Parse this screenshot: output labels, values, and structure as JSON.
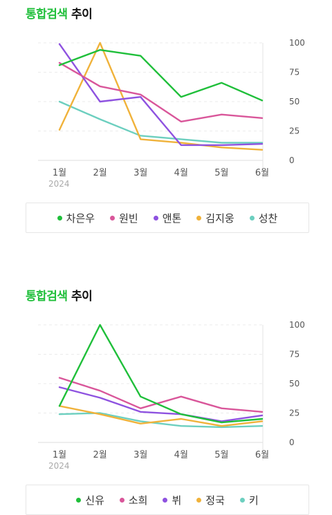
{
  "chart_data": [
    {
      "type": "line",
      "title_highlight": "통합검색",
      "title_rest": "추이",
      "categories": [
        "1월",
        "2월",
        "3월",
        "4월",
        "5월",
        "6월"
      ],
      "year_label": "2024",
      "ylim": [
        0,
        100
      ],
      "yticks": [
        0,
        25,
        50,
        75,
        100
      ],
      "series": [
        {
          "name": "차은우",
          "color": "#1fbf3a",
          "values": [
            81,
            94,
            89,
            54,
            66,
            51
          ]
        },
        {
          "name": "원빈",
          "color": "#d9569a",
          "values": [
            83,
            63,
            56,
            33,
            39,
            36
          ]
        },
        {
          "name": "앤톤",
          "color": "#8e52e0",
          "values": [
            99,
            50,
            54,
            13,
            13,
            14
          ]
        },
        {
          "name": "김지웅",
          "color": "#f0b23a",
          "values": [
            26,
            100,
            18,
            15,
            11,
            9
          ]
        },
        {
          "name": "성찬",
          "color": "#6ccfbf",
          "values": [
            50,
            35,
            21,
            18,
            15,
            15
          ]
        }
      ]
    },
    {
      "type": "line",
      "title_highlight": "통합검색",
      "title_rest": "추이",
      "categories": [
        "1월",
        "2월",
        "3월",
        "4월",
        "5월",
        "6월"
      ],
      "year_label": "2024",
      "ylim": [
        0,
        100
      ],
      "yticks": [
        0,
        25,
        50,
        75,
        100
      ],
      "series": [
        {
          "name": "신유",
          "color": "#1fbf3a",
          "values": [
            31,
            100,
            39,
            24,
            17,
            20
          ]
        },
        {
          "name": "소희",
          "color": "#d9569a",
          "values": [
            55,
            44,
            29,
            39,
            29,
            26
          ]
        },
        {
          "name": "뷔",
          "color": "#8e52e0",
          "values": [
            47,
            38,
            26,
            24,
            18,
            23
          ]
        },
        {
          "name": "정국",
          "color": "#f0b23a",
          "values": [
            31,
            24,
            16,
            20,
            14,
            18
          ]
        },
        {
          "name": "키",
          "color": "#6ccfbf",
          "values": [
            24,
            25,
            18,
            14,
            13,
            14
          ]
        }
      ]
    }
  ]
}
